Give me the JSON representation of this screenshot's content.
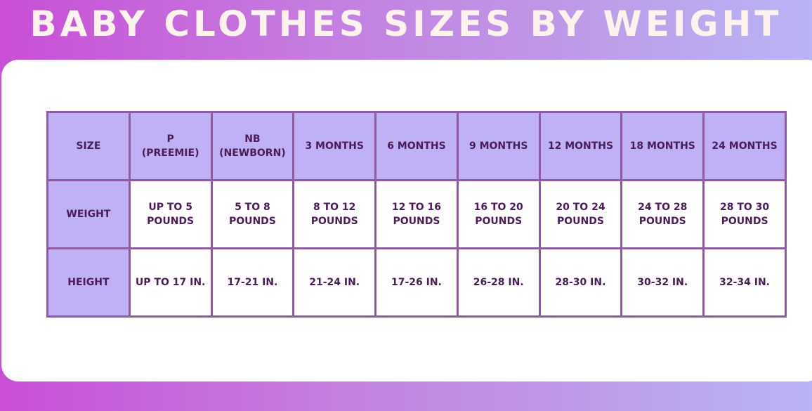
{
  "title": "BABY CLOTHES SIZES BY WEIGHT",
  "colors": {
    "header_fill": "#c0b0f5",
    "border": "#8f5a9f",
    "text": "#4a1c57",
    "title_text": "#fdf3ec"
  },
  "table": {
    "rows": [
      {
        "label": "SIZE",
        "cells": [
          "P\n(PREEMIE)",
          "NB\n(NEWBORN)",
          "3 MONTHS",
          "6 MONTHS",
          "9 MONTHS",
          "12 MONTHS",
          "18 MONTHS",
          "24 MONTHS"
        ]
      },
      {
        "label": "WEIGHT",
        "cells": [
          "UP TO 5\nPOUNDS",
          "5 TO 8\nPOUNDS",
          "8 TO 12\nPOUNDS",
          "12 TO 16\nPOUNDS",
          "16 TO 20\nPOUNDS",
          "20 TO 24\nPOUNDS",
          "24 TO 28\nPOUNDS",
          "28 TO 30\nPOUNDS"
        ]
      },
      {
        "label": "HEIGHT",
        "cells": [
          "UP TO 17 IN.",
          "17-21 IN.",
          "21-24 IN.",
          "17-26 IN.",
          "26-28 IN.",
          "28-30 IN.",
          "30-32 IN.",
          "32-34 IN."
        ]
      }
    ]
  }
}
